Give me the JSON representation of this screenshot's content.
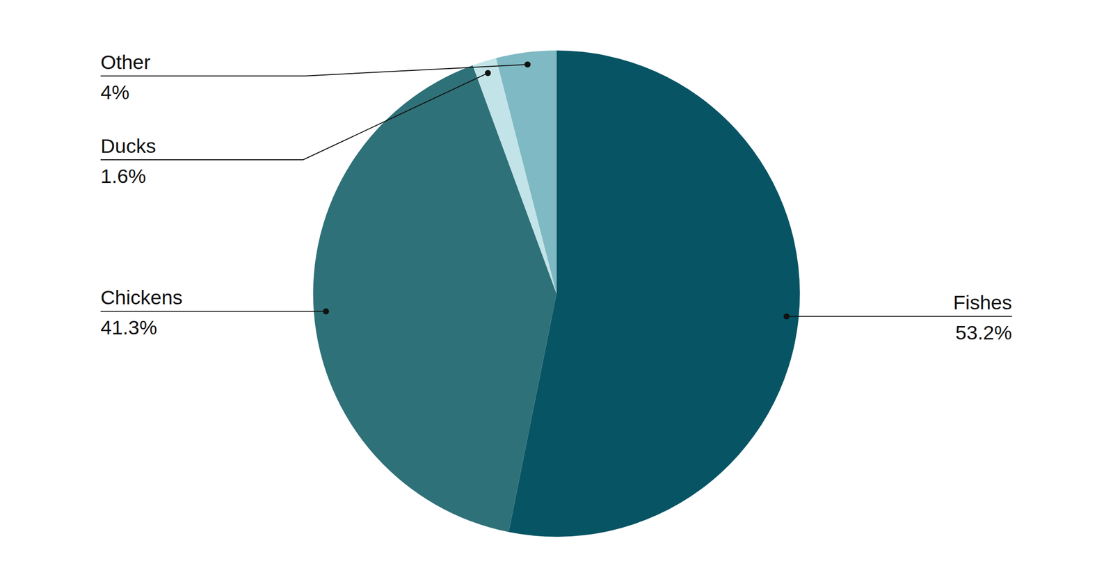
{
  "chart_data": {
    "type": "pie",
    "categories": [
      "Fishes",
      "Chickens",
      "Ducks",
      "Other"
    ],
    "values": [
      53.2,
      41.3,
      1.6,
      4
    ],
    "value_labels": [
      "53.2%",
      "41.3%",
      "1.6%",
      "4%"
    ],
    "colors": [
      "#075464",
      "#2f7178",
      "#c2e4e8",
      "#7fb9c3"
    ],
    "data_labels": true
  }
}
